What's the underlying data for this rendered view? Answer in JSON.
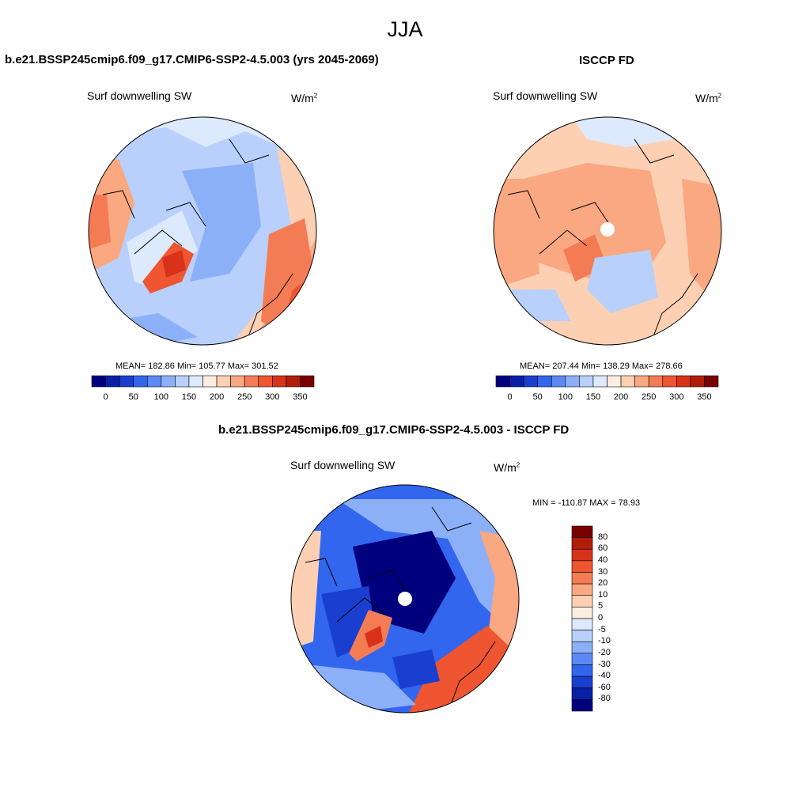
{
  "title": "JJA",
  "panels": [
    {
      "title": "b.e21.BSSP245cmip6.f09_g17.CMIP6-SSP2-4.5.003 (yrs 2045-2069)",
      "variable": "Surf downwelling SW",
      "units_base": "W/m",
      "units_exp": "2",
      "stats": "MEAN= 182.86  Min= 105.77  Max= 301.52"
    },
    {
      "title": "ISCCP FD",
      "variable": "Surf downwelling SW",
      "units_base": "W/m",
      "units_exp": "2",
      "stats": "MEAN= 207.44  Min= 138.29  Max= 278.66"
    },
    {
      "title": "b.e21.BSSP245cmip6.f09_g17.CMIP6-SSP2-4.5.003 - ISCCP FD",
      "variable": "Surf downwelling SW",
      "units_base": "W/m",
      "units_exp": "2",
      "stats": "MIN = -110.87 MAX =  78.93"
    }
  ],
  "colorbar_abs": {
    "colors": [
      "#00007f",
      "#0a1fa8",
      "#1a3fd0",
      "#3366ee",
      "#5b8af5",
      "#8cb0f8",
      "#b8d0fb",
      "#dde9fd",
      "#fdeee2",
      "#fdd0b4",
      "#f9a882",
      "#f47c55",
      "#ee5530",
      "#d8321a",
      "#b01e0a",
      "#7a0000"
    ],
    "labels": [
      "0",
      "50",
      "100",
      "150",
      "200",
      "250",
      "300",
      "350"
    ]
  },
  "colorbar_diff": {
    "colors": [
      "#00007f",
      "#0a1fa8",
      "#1a3fd0",
      "#3366ee",
      "#5b8af5",
      "#8cb0f8",
      "#b8d0fb",
      "#dde9fd",
      "#fdeee2",
      "#fdd0b4",
      "#f9a882",
      "#f47c55",
      "#ee5530",
      "#d8321a",
      "#b01e0a",
      "#7a0000"
    ],
    "labels": [
      "80",
      "60",
      "40",
      "30",
      "20",
      "10",
      "5",
      "0",
      "-5",
      "-10",
      "-20",
      "-30",
      "-40",
      "-60",
      "-80"
    ]
  }
}
